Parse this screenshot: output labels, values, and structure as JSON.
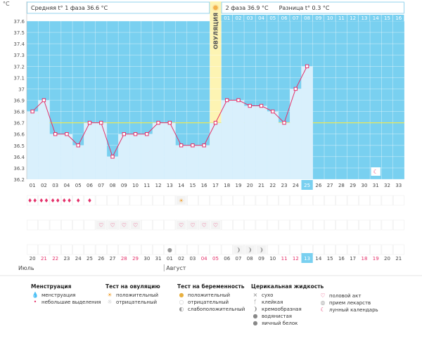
{
  "header": {
    "unit": "°C",
    "phase1_text": "Средняя t° 1 фаза 36.6 °C",
    "phase2_text": "2 фаза 36.9 °C",
    "diff_text": "Разница t° 0.3 °C",
    "ovulation_label": "ОВУЛЯЦИЯ"
  },
  "colors": {
    "accent": "#79d0f0",
    "bar_fill": "#d9f0fc",
    "point": "#e4316a",
    "ovulation": "#fdf4b3",
    "coverline": "#e8e85a",
    "weekend": "#e4316a"
  },
  "cycle_days": [
    "01",
    "02",
    "03",
    "04",
    "05",
    "06",
    "07",
    "08",
    "09",
    "10",
    "11",
    "12",
    "13",
    "14",
    "15",
    "16",
    "17",
    "18",
    "19",
    "20",
    "21",
    "22",
    "23",
    "24",
    "25",
    "26",
    "27",
    "28",
    "29",
    "30",
    "31",
    "32",
    "33"
  ],
  "today_index": 24,
  "phase2_days": [
    "01",
    "02",
    "03",
    "04",
    "05",
    "06",
    "07",
    "08",
    "09",
    "10",
    "11",
    "12",
    "13",
    "14",
    "15",
    "16"
  ],
  "chart_data": {
    "type": "line",
    "x": [
      1,
      2,
      3,
      4,
      5,
      6,
      7,
      8,
      9,
      10,
      11,
      12,
      13,
      14,
      15,
      16,
      17,
      18,
      19,
      20,
      21,
      22,
      23,
      24,
      25
    ],
    "y": [
      36.8,
      36.9,
      36.6,
      36.6,
      36.5,
      36.7,
      36.7,
      36.4,
      36.6,
      36.6,
      36.6,
      36.7,
      36.7,
      36.5,
      36.5,
      36.5,
      36.7,
      36.9,
      36.9,
      36.85,
      36.85,
      36.8,
      36.7,
      37.0,
      37.2
    ],
    "ylim": [
      36.2,
      37.6
    ],
    "yticks": [
      "37.6",
      "37.5",
      "37.4",
      "37.3",
      "37.2",
      "37.1",
      "37",
      "36.9",
      "36.8",
      "36.7",
      "36.6",
      "36.5",
      "36.4",
      "36.3",
      "36.2"
    ],
    "coverline": 36.7,
    "ovulation_day": 17,
    "grid": true
  },
  "markers": {
    "menstruation_heavy_days": [
      1,
      2,
      3,
      4
    ],
    "menstruation_light_days": [
      5,
      6
    ],
    "ovulation_test_positive_days": [
      14
    ],
    "intercourse_days": [
      7,
      8,
      9,
      10,
      14,
      15,
      16,
      17
    ],
    "medication_days": [
      13
    ],
    "cervical_creamy_days": [
      19,
      20,
      21
    ],
    "lunar_calendar_days": [
      31
    ]
  },
  "calendar": {
    "dates": [
      "20",
      "21",
      "22",
      "23",
      "24",
      "25",
      "26",
      "27",
      "28",
      "29",
      "30",
      "31",
      "01",
      "02",
      "03",
      "04",
      "05",
      "06",
      "07",
      "08",
      "09",
      "10",
      "11",
      "12",
      "13",
      "14",
      "15",
      "16",
      "17",
      "18",
      "19",
      "20",
      "21"
    ],
    "weekend_indices": [
      1,
      2,
      8,
      9,
      15,
      16,
      22,
      23,
      29,
      30
    ],
    "today_index": 24,
    "month_july": "Июль",
    "month_august": "Август",
    "august_start_index": 12
  },
  "legend": {
    "menstruation": {
      "title": "Менструация",
      "items": [
        "менструация",
        "небольшие выделения"
      ]
    },
    "ovulation_test": {
      "title": "Тест на овуляцию",
      "items": [
        "положительный",
        "отрицательный"
      ]
    },
    "pregnancy_test": {
      "title": "Тест на беременность",
      "items": [
        "положительный",
        "отрицательный",
        "слабоположительный"
      ]
    },
    "cervical": {
      "title": "Церикальная жидкость",
      "items": [
        "сухо",
        "клейкая",
        "кремообразная",
        "водянистая",
        "яичный белок"
      ]
    },
    "other": {
      "items": [
        "половой акт",
        "прием лекарств",
        "лунный календарь"
      ]
    }
  },
  "icons": {
    "heavy": "drops-icon",
    "light": "drop-icon",
    "ovu_pos": "sun-icon",
    "heart": "heart-icon",
    "med": "pill-icon",
    "creamy": "cream-icon",
    "moon": "moon-icon"
  }
}
